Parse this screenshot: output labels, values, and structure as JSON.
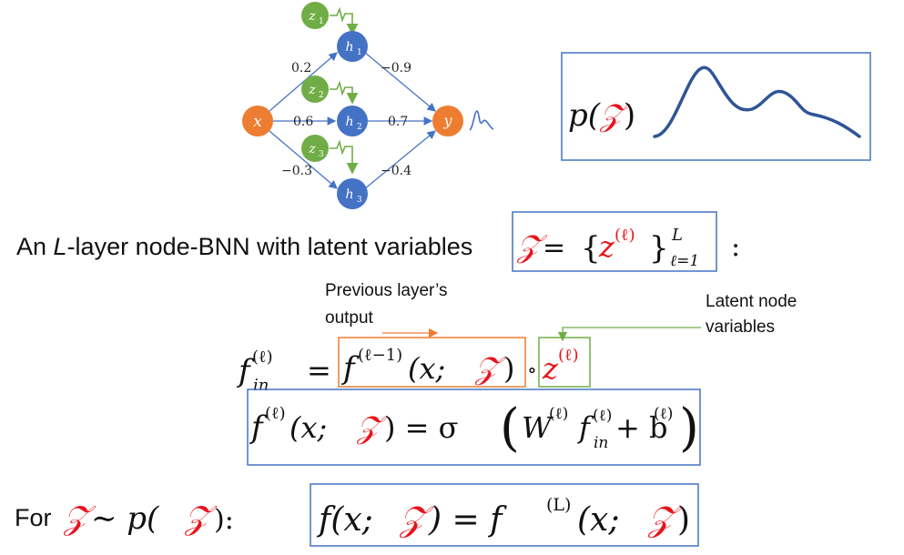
{
  "network": {
    "nodes": {
      "x": "x",
      "h1": "h",
      "h1_sub": "1",
      "h2": "h",
      "h2_sub": "2",
      "h3": "h",
      "h3_sub": "3",
      "y": "y",
      "z1": "z",
      "z1_sub": "1",
      "z2": "z",
      "z2_sub": "2",
      "z3": "z",
      "z3_sub": "3"
    },
    "weights": {
      "x_h1": "0.2",
      "x_h2": "0.6",
      "x_h3": "−0.3",
      "h1_y": "−0.9",
      "h2_y": "0.7",
      "h3_y": "−0.4"
    }
  },
  "density_box": {
    "p": "p(",
    "Z": "𝒵",
    "close": ")"
  },
  "intro": {
    "text_1": "An ",
    "text_L": "L",
    "text_2": "-layer node-BNN with latent variables",
    "Z": "𝒵",
    "eq": " = ",
    "lbrace": "{",
    "z": "z",
    "sup": "(ℓ)",
    "rbrace": "}",
    "sub": "ℓ=1",
    "supL": "L",
    "colon": ":"
  },
  "annotations": {
    "prev_line1": "Previous layer’s",
    "prev_line2": "output",
    "latent_line1": "Latent node",
    "latent_line2": "variables"
  },
  "eq1": {
    "f": "f",
    "sup": "(ℓ)",
    "sub": "in",
    "eq": "=",
    "f2": "f",
    "sup2": "(ℓ−1)",
    "args": "(x; ",
    "Z": "𝒵",
    "close": ")",
    "circ": "∘",
    "z": "z",
    "zsup": "(ℓ)"
  },
  "eq2": {
    "f": "f",
    "sup": "(ℓ)",
    "args": "(x; ",
    "Z": "𝒵",
    "rest": ") = σ",
    "W": "W",
    "Wsup": "(ℓ)",
    "f2": "f",
    "f2sup": "(ℓ)",
    "f2sub": "in",
    "plus": " + b",
    "bsup": "(ℓ)"
  },
  "eq3": {
    "for": "For ",
    "Z": "𝒵",
    "sim": " ∼ p(",
    "Z2": "𝒵",
    "end": "):",
    "f": "f(x; ",
    "Z3": "𝒵",
    "mid": ") = f",
    "sup": "(L)",
    "args": "(x; ",
    "Z4": "𝒵",
    "close": ")"
  },
  "colors": {
    "orange_node": "#ed7d31",
    "blue_node": "#4472c4",
    "green_node": "#70ad47",
    "red": "#e8141c",
    "curve": "#2f5597",
    "box_blue": "#4472c4",
    "box_orange": "#ed7d31",
    "box_green": "#70ad47"
  }
}
